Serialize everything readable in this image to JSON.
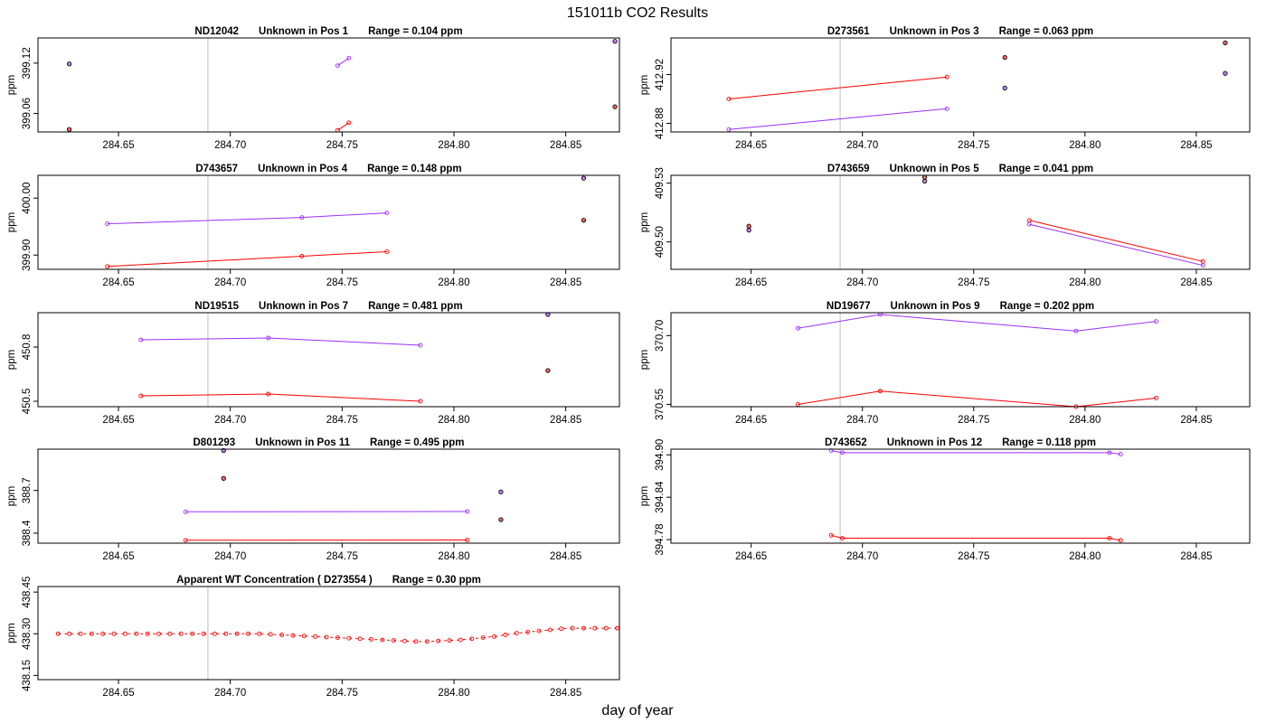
{
  "figure": {
    "title": "151011b  CO2 Results",
    "xlabel": "day of year",
    "ylabel": "ppm",
    "colors": {
      "series_a": "#ff0000",
      "series_b": "#9b30ff",
      "points": "#000000",
      "guide": "#bebebe",
      "background": "#ffffff"
    }
  },
  "chart_data": [
    {
      "type": "line",
      "id": "ND12042",
      "title_id": "ND12042",
      "title_pos": "Unknown in Pos 1",
      "title_range": "Range =  0.104 ppm",
      "ylabel": "ppm",
      "xlim": [
        284.614,
        284.874
      ],
      "ylim": [
        399.038,
        399.15
      ],
      "x_ticks": [
        284.65,
        284.7,
        284.75,
        284.8,
        284.85
      ],
      "x_tick_labels": [
        "284.65",
        "284.70",
        "284.75",
        "284.80",
        "284.85"
      ],
      "y_ticks": [
        399.06,
        399.12
      ],
      "y_tick_labels": [
        "399.06",
        "399.12"
      ],
      "vlines": [
        284.69
      ],
      "series": [
        {
          "name": "red",
          "color": "#ff0000",
          "x": [
            284.748,
            284.753
          ],
          "y": [
            399.04,
            399.049
          ]
        },
        {
          "name": "purple",
          "color": "#9b30ff",
          "x": [
            284.748,
            284.753
          ],
          "y": [
            399.117,
            399.126
          ]
        }
      ],
      "points": [
        {
          "x": 284.628,
          "y": 399.119,
          "color": "#9b30ff"
        },
        {
          "x": 284.628,
          "y": 399.041,
          "color": "#ff0000"
        },
        {
          "x": 284.872,
          "y": 399.146,
          "color": "#9b30ff"
        },
        {
          "x": 284.872,
          "y": 399.068,
          "color": "#ff0000"
        }
      ]
    },
    {
      "type": "line",
      "id": "D273561",
      "title_id": "D273561",
      "title_pos": "Unknown in Pos 3",
      "title_range": "Range =  0.063 ppm",
      "ylabel": "ppm",
      "xlim": [
        284.614,
        284.874
      ],
      "ylim": [
        412.873,
        412.95
      ],
      "x_ticks": [
        284.65,
        284.7,
        284.75,
        284.8,
        284.85
      ],
      "x_tick_labels": [
        "284.65",
        "284.70",
        "284.75",
        "284.80",
        "284.85"
      ],
      "y_ticks": [
        412.88,
        412.92
      ],
      "y_tick_labels": [
        "412.88",
        "412.92"
      ],
      "vlines": [
        284.69,
        284.874
      ],
      "series": [
        {
          "name": "red",
          "color": "#ff0000",
          "x": [
            284.64,
            284.738
          ],
          "y": [
            412.9,
            412.918
          ]
        },
        {
          "name": "purple",
          "color": "#9b30ff",
          "x": [
            284.64,
            284.738
          ],
          "y": [
            412.875,
            412.892
          ]
        }
      ],
      "points": [
        {
          "x": 284.764,
          "y": 412.934,
          "color": "#ff0000"
        },
        {
          "x": 284.764,
          "y": 412.909,
          "color": "#9b30ff"
        },
        {
          "x": 284.863,
          "y": 412.946,
          "color": "#ff0000"
        },
        {
          "x": 284.863,
          "y": 412.921,
          "color": "#9b30ff"
        }
      ]
    },
    {
      "type": "line",
      "id": "D743657",
      "title_id": "D743657",
      "title_pos": "Unknown in Pos 4",
      "title_range": "Range =  0.148 ppm",
      "ylabel": "ppm",
      "xlim": [
        284.614,
        284.874
      ],
      "ylim": [
        399.875,
        400.04
      ],
      "x_ticks": [
        284.65,
        284.7,
        284.75,
        284.8,
        284.85
      ],
      "x_tick_labels": [
        "284.65",
        "284.70",
        "284.75",
        "284.80",
        "284.85"
      ],
      "y_ticks": [
        399.9,
        400.0
      ],
      "y_tick_labels": [
        "399.90",
        "400.00"
      ],
      "vlines": [
        284.69,
        284.874
      ],
      "series": [
        {
          "name": "red",
          "color": "#ff0000",
          "x": [
            284.645,
            284.732,
            284.77
          ],
          "y": [
            399.88,
            399.898,
            399.906
          ]
        },
        {
          "name": "purple",
          "color": "#9b30ff",
          "x": [
            284.645,
            284.732,
            284.77
          ],
          "y": [
            399.955,
            399.966,
            399.974
          ]
        }
      ],
      "points": [
        {
          "x": 284.858,
          "y": 400.035,
          "color": "#9b30ff"
        },
        {
          "x": 284.858,
          "y": 399.961,
          "color": "#ff0000"
        }
      ]
    },
    {
      "type": "line",
      "id": "D743659",
      "title_id": "D743659",
      "title_pos": "Unknown in Pos 5",
      "title_range": "Range =  0.041 ppm",
      "ylabel": "ppm",
      "xlim": [
        284.614,
        284.874
      ],
      "ylim": [
        409.486,
        409.534
      ],
      "x_ticks": [
        284.65,
        284.7,
        284.75,
        284.8,
        284.85
      ],
      "x_tick_labels": [
        "284.65",
        "284.70",
        "284.75",
        "284.80",
        "284.85"
      ],
      "y_ticks": [
        409.5,
        409.53
      ],
      "y_tick_labels": [
        "409.50",
        "409.53"
      ],
      "vlines": [
        284.69,
        284.874
      ],
      "series": [
        {
          "name": "red",
          "color": "#ff0000",
          "x": [
            284.775,
            284.853
          ],
          "y": [
            409.511,
            409.49
          ]
        },
        {
          "name": "purple",
          "color": "#9b30ff",
          "x": [
            284.775,
            284.853
          ],
          "y": [
            409.509,
            409.488
          ]
        }
      ],
      "points": [
        {
          "x": 284.649,
          "y": 409.508,
          "color": "#ff0000"
        },
        {
          "x": 284.649,
          "y": 409.506,
          "color": "#9b30ff"
        },
        {
          "x": 284.728,
          "y": 409.533,
          "color": "#ff0000"
        },
        {
          "x": 284.728,
          "y": 409.531,
          "color": "#9b30ff"
        }
      ]
    },
    {
      "type": "line",
      "id": "ND19515",
      "title_id": "ND19515",
      "title_pos": "Unknown in Pos 7",
      "title_range": "Range =  0.481 ppm",
      "ylabel": "ppm",
      "xlim": [
        284.614,
        284.874
      ],
      "ylim": [
        450.47,
        450.99
      ],
      "x_ticks": [
        284.65,
        284.7,
        284.75,
        284.8,
        284.85
      ],
      "x_tick_labels": [
        "284.65",
        "284.70",
        "284.75",
        "284.80",
        "284.85"
      ],
      "y_ticks": [
        450.5,
        450.8
      ],
      "y_tick_labels": [
        "450.5",
        "450.8"
      ],
      "vlines": [
        284.69,
        284.874
      ],
      "series": [
        {
          "name": "red",
          "color": "#ff0000",
          "x": [
            284.66,
            284.717,
            284.785
          ],
          "y": [
            450.53,
            450.54,
            450.5
          ]
        },
        {
          "name": "purple",
          "color": "#9b30ff",
          "x": [
            284.66,
            284.717,
            284.785
          ],
          "y": [
            450.84,
            450.85,
            450.81
          ]
        }
      ],
      "points": [
        {
          "x": 284.842,
          "y": 450.98,
          "color": "#9b30ff"
        },
        {
          "x": 284.842,
          "y": 450.67,
          "color": "#ff0000"
        }
      ]
    },
    {
      "type": "line",
      "id": "ND19677",
      "title_id": "ND19677",
      "title_pos": "Unknown in Pos 9",
      "title_range": "Range =  0.202 ppm",
      "ylabel": "ppm",
      "xlim": [
        284.614,
        284.874
      ],
      "ylim": [
        370.545,
        370.75
      ],
      "x_ticks": [
        284.65,
        284.7,
        284.75,
        284.8,
        284.85
      ],
      "x_tick_labels": [
        "284.65",
        "284.70",
        "284.75",
        "284.80",
        "284.85"
      ],
      "y_ticks": [
        370.55,
        370.7
      ],
      "y_tick_labels": [
        "370.55",
        "370.70"
      ],
      "vlines": [
        284.69,
        284.874
      ],
      "series": [
        {
          "name": "red",
          "color": "#ff0000",
          "x": [
            284.671,
            284.708,
            284.796,
            284.832
          ],
          "y": [
            370.55,
            370.579,
            370.545,
            370.564
          ]
        },
        {
          "name": "purple",
          "color": "#9b30ff",
          "x": [
            284.671,
            284.708,
            284.796,
            284.832
          ],
          "y": [
            370.716,
            370.746,
            370.71,
            370.731
          ]
        }
      ],
      "points": []
    },
    {
      "type": "line",
      "id": "D801293",
      "title_id": "D801293",
      "title_pos": "Unknown in Pos 11",
      "title_range": "Range =  0.495 ppm",
      "ylabel": "ppm",
      "xlim": [
        284.614,
        284.874
      ],
      "ylim": [
        388.33,
        388.99
      ],
      "x_ticks": [
        284.65,
        284.7,
        284.75,
        284.8,
        284.85
      ],
      "x_tick_labels": [
        "284.65",
        "284.70",
        "284.75",
        "284.80",
        "284.85"
      ],
      "y_ticks": [
        388.4,
        388.7
      ],
      "y_tick_labels": [
        "388.4",
        "388.7"
      ],
      "vlines": [
        284.874
      ],
      "series": [
        {
          "name": "red",
          "color": "#ff0000",
          "x": [
            284.68,
            284.806
          ],
          "y": [
            388.35,
            388.352
          ]
        },
        {
          "name": "purple",
          "color": "#9b30ff",
          "x": [
            284.68,
            284.806
          ],
          "y": [
            388.55,
            388.552
          ]
        }
      ],
      "points": [
        {
          "x": 284.697,
          "y": 388.98,
          "color": "#9b30ff"
        },
        {
          "x": 284.697,
          "y": 388.785,
          "color": "#ff0000"
        },
        {
          "x": 284.821,
          "y": 388.69,
          "color": "#9b30ff"
        },
        {
          "x": 284.821,
          "y": 388.495,
          "color": "#ff0000"
        }
      ]
    },
    {
      "type": "line",
      "id": "D743652",
      "title_id": "D743652",
      "title_pos": "Unknown in Pos 12",
      "title_range": "Range =  0.118 ppm",
      "ylabel": "ppm",
      "xlim": [
        284.614,
        284.874
      ],
      "ylim": [
        394.775,
        394.908
      ],
      "x_ticks": [
        284.65,
        284.7,
        284.75,
        284.8,
        284.85
      ],
      "x_tick_labels": [
        "284.65",
        "284.70",
        "284.75",
        "284.80",
        "284.85"
      ],
      "y_ticks": [
        394.78,
        394.84,
        394.9
      ],
      "y_tick_labels": [
        "394.78",
        "394.84",
        "394.90"
      ],
      "vlines": [
        284.69,
        284.874
      ],
      "series": [
        {
          "name": "red",
          "color": "#ff0000",
          "x": [
            284.686,
            284.691,
            284.811,
            284.816
          ],
          "y": [
            394.786,
            394.782,
            394.782,
            394.779
          ]
        },
        {
          "name": "purple",
          "color": "#9b30ff",
          "x": [
            284.686,
            284.691,
            284.811,
            284.816
          ],
          "y": [
            394.906,
            394.903,
            394.903,
            394.901
          ]
        }
      ],
      "points": []
    },
    {
      "type": "line",
      "id": "WT",
      "title_id": "Apparent WT Concentration ( D273554 )",
      "title_pos": "",
      "title_range": "Range = 0.30 ppm",
      "ylabel": "ppm",
      "xlim": [
        284.614,
        284.874
      ],
      "ylim": [
        438.135,
        438.47
      ],
      "x_ticks": [
        284.65,
        284.7,
        284.75,
        284.8,
        284.85
      ],
      "x_tick_labels": [
        "284.65",
        "284.70",
        "284.75",
        "284.80",
        "284.85"
      ],
      "y_ticks": [
        438.15,
        438.3,
        438.45
      ],
      "y_tick_labels": [
        "438.15",
        "438.30",
        "438.45"
      ],
      "vlines": [
        284.69,
        284.874
      ],
      "dashed": true,
      "series": [
        {
          "name": "WT",
          "color": "#ff0000",
          "x": [
            284.623,
            284.628,
            284.633,
            284.638,
            284.643,
            284.648,
            284.653,
            284.658,
            284.663,
            284.668,
            284.673,
            284.678,
            284.683,
            284.688,
            284.693,
            284.698,
            284.703,
            284.708,
            284.713,
            284.718,
            284.723,
            284.728,
            284.733,
            284.738,
            284.743,
            284.748,
            284.753,
            284.758,
            284.763,
            284.768,
            284.773,
            284.778,
            284.783,
            284.788,
            284.793,
            284.798,
            284.803,
            284.808,
            284.813,
            284.818,
            284.823,
            284.828,
            284.833,
            284.838,
            284.843,
            284.848,
            284.853,
            284.858,
            284.863,
            284.868,
            284.873
          ],
          "y": [
            438.3,
            438.3,
            438.3,
            438.3,
            438.3,
            438.3,
            438.3,
            438.3,
            438.3,
            438.3,
            438.3,
            438.3,
            438.3,
            438.3,
            438.3,
            438.3,
            438.3,
            438.3,
            438.3,
            438.298,
            438.296,
            438.294,
            438.292,
            438.29,
            438.288,
            438.286,
            438.284,
            438.282,
            438.28,
            438.278,
            438.276,
            438.274,
            438.272,
            438.272,
            438.274,
            438.276,
            438.278,
            438.282,
            438.286,
            438.29,
            438.296,
            438.302,
            438.306,
            438.31,
            438.314,
            438.318,
            438.32,
            438.32,
            438.32,
            438.32,
            438.32
          ]
        }
      ],
      "points": []
    }
  ]
}
